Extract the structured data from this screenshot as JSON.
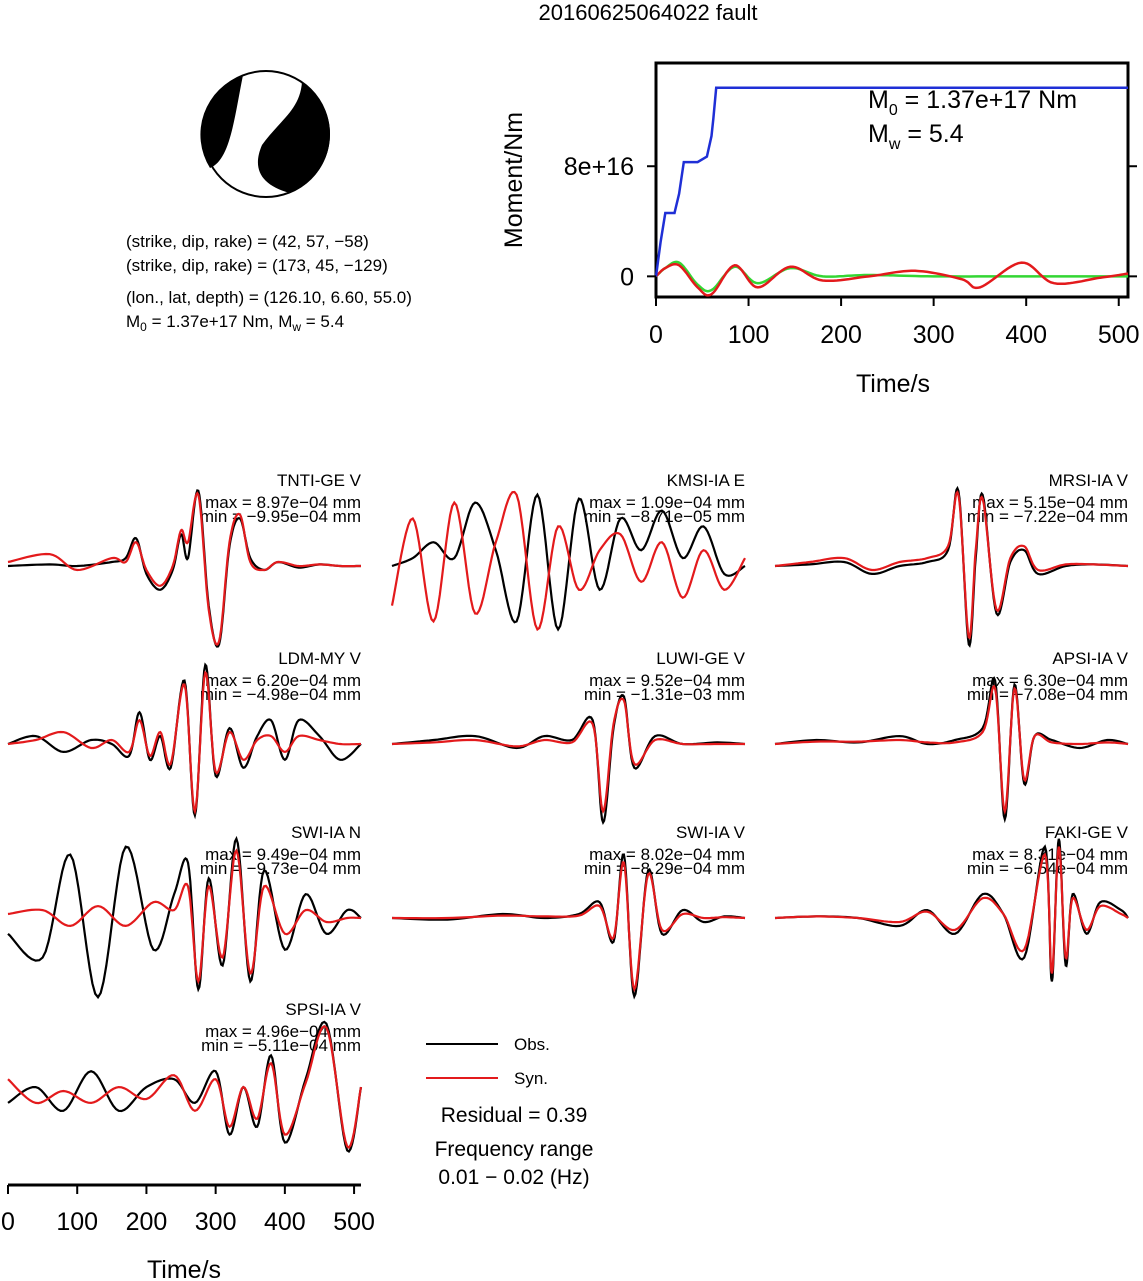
{
  "title": "20160625064022 fault",
  "mechanism": {
    "line1": "(strike, dip, rake) = (42, 57, −58)",
    "line2": "(strike, dip, rake) = (173, 45, −129)",
    "line3": "(lon., lat, depth) = (126.10, 6.60, 55.0)",
    "m0_prefix": "M",
    "m0_sub": "0",
    "m0_mid": " = 1.37e+17 Nm, M",
    "mw_sub": "w",
    "mw_value": " = 5.4"
  },
  "legend": {
    "obs": "Obs.",
    "syn": "Syn.",
    "residual": "Residual = 0.39",
    "freq_label": "Frequency range",
    "freq_value": "0.01 − 0.02 (Hz)"
  },
  "colors": {
    "obs": "#000000",
    "syn": "#e31a1c",
    "stf": "#1f2fd6",
    "stf_green": "#33d633",
    "beachball": "#000000"
  },
  "chart_data": [
    {
      "type": "line",
      "title": "",
      "xlabel": "Time/s",
      "ylabel": "Moment/Nm",
      "xlim": [
        0,
        510
      ],
      "ylim": [
        -1.5e+16,
        1.55e+17
      ],
      "xticks": [
        0,
        100,
        200,
        300,
        400,
        500
      ],
      "yticks": [
        0,
        8e+16
      ],
      "ytick_labels": [
        "0",
        "8e+16"
      ],
      "annotation_m0": "M0 = 1.37e+17 Nm",
      "annotation_mw": "Mw = 5.4",
      "series": [
        {
          "color": "blue",
          "x": [
            0,
            5,
            10,
            20,
            25,
            30,
            45,
            55,
            60,
            62,
            65,
            510
          ],
          "y": [
            0,
            2.5e+16,
            4.6e+16,
            4.6e+16,
            6e+16,
            8.3e+16,
            8.3e+16,
            8.7e+16,
            1.02e+17,
            1.15e+17,
            1.37e+17,
            1.37e+17
          ]
        },
        {
          "color": "red",
          "x": [
            0,
            10,
            25,
            45,
            60,
            85,
            110,
            145,
            180,
            230,
            280,
            330,
            350,
            395,
            430,
            480,
            510
          ],
          "y": [
            0,
            6000000000000000.0,
            8000000000000000.0,
            -8000000000000000.0,
            -1.3e+16,
            8000000000000000.0,
            -8000000000000000.0,
            7000000000000000.0,
            -3000000000000000.0,
            0,
            4000000000000000.0,
            -2000000000000000.0,
            -8000000000000000.0,
            1e+16,
            -5000000000000000.0,
            -1000000000000000.0,
            2000000000000000.0
          ]
        },
        {
          "color": "green",
          "x": [
            0,
            10,
            25,
            45,
            60,
            85,
            110,
            145,
            180,
            230,
            300,
            400,
            510
          ],
          "y": [
            0,
            6000000000000000.0,
            1e+16,
            -6000000000000000.0,
            -1e+16,
            7000000000000000.0,
            -5000000000000000.0,
            6000000000000000.0,
            0,
            1000000000000000.0,
            0,
            0,
            0
          ]
        }
      ]
    },
    {
      "type": "line",
      "title": "",
      "xlabel": "Time/s",
      "xlim": [
        0,
        510
      ],
      "xticks": [
        0,
        100,
        200,
        300,
        400,
        500
      ],
      "panels": [
        {
          "station": "TNTI-GE V",
          "max": "max = 8.97e−04 mm",
          "min": "min = −9.95e−04 mm"
        },
        {
          "station": "KMSI-IA E",
          "max": "max = 1.09e−04 mm",
          "min": "min = −8.71e−05 mm"
        },
        {
          "station": "MRSI-IA V",
          "max": "max = 5.15e−04 mm",
          "min": "min = −7.22e−04 mm"
        },
        {
          "station": "LDM-MY V",
          "max": "max = 6.20e−04 mm",
          "min": "min = −4.98e−04 mm"
        },
        {
          "station": "LUWI-GE V",
          "max": "max = 9.52e−04 mm",
          "min": "min = −1.31e−03 mm"
        },
        {
          "station": "APSI-IA V",
          "max": "max = 6.30e−04 mm",
          "min": "min = −7.08e−04 mm"
        },
        {
          "station": "SWI-IA N",
          "max": "max = 9.49e−04 mm",
          "min": "min = −9.73e−04 mm"
        },
        {
          "station": "SWI-IA V",
          "max": "max = 8.02e−04 mm",
          "min": "min = −8.29e−04 mm"
        },
        {
          "station": "FAKI-GE V",
          "max": "max = 8.31e−04 mm",
          "min": "min = −6.54e−04 mm"
        },
        {
          "station": "SPSI-IA V",
          "max": "max = 4.96e−04 mm",
          "min": "min = −5.11e−04 mm"
        }
      ],
      "obs_traces": [
        {
          "t": [
            0,
            60,
            100,
            150,
            170,
            185,
            200,
            220,
            238,
            250,
            260,
            275,
            290,
            305,
            320,
            335,
            350,
            370,
            390,
            420,
            450,
            480,
            510
          ],
          "a": [
            0,
            0.02,
            0,
            0.05,
            0.1,
            0.35,
            -0.1,
            -0.3,
            -0.05,
            0.4,
            0.1,
            0.95,
            -0.5,
            -0.99,
            0.25,
            0.6,
            0.1,
            -0.05,
            0.05,
            -0.02,
            0.02,
            0,
            0
          ]
        },
        {
          "t": [
            0,
            30,
            60,
            90,
            120,
            150,
            180,
            210,
            240,
            270,
            300,
            330,
            360,
            390,
            420,
            450,
            480,
            510
          ],
          "a": [
            0,
            0.1,
            0.3,
            0.1,
            0.8,
            0.2,
            -0.7,
            0.9,
            -0.8,
            0.85,
            -0.3,
            0.6,
            0.2,
            0.7,
            0.1,
            0.5,
            -0.1,
            0
          ]
        },
        {
          "t": [
            0,
            50,
            100,
            140,
            180,
            220,
            250,
            265,
            280,
            290,
            300,
            320,
            340,
            360,
            380,
            420,
            460,
            510
          ],
          "a": [
            0,
            0.02,
            0.05,
            -0.1,
            0,
            0.05,
            0.2,
            0.95,
            -0.99,
            0.1,
            0.9,
            -0.6,
            0.05,
            0.2,
            -0.1,
            0,
            0.02,
            0
          ]
        },
        {
          "t": [
            0,
            40,
            80,
            120,
            150,
            175,
            190,
            205,
            220,
            235,
            255,
            270,
            285,
            300,
            320,
            340,
            360,
            380,
            400,
            420,
            450,
            480,
            510
          ],
          "a": [
            0,
            0.1,
            -0.1,
            0.05,
            0,
            -0.15,
            0.4,
            -0.2,
            0.1,
            -0.3,
            0.8,
            -0.9,
            1.0,
            -0.4,
            0.2,
            -0.3,
            0.1,
            0.3,
            -0.2,
            0.3,
            0.1,
            -0.2,
            0
          ]
        },
        {
          "t": [
            0,
            60,
            120,
            180,
            220,
            260,
            290,
            305,
            320,
            335,
            350,
            380,
            420,
            470,
            510
          ],
          "a": [
            0,
            0.05,
            0.1,
            -0.05,
            0.1,
            0.05,
            0.3,
            -0.99,
            0.2,
            0.6,
            -0.3,
            0.1,
            0,
            0.02,
            0
          ]
        },
        {
          "t": [
            0,
            60,
            120,
            180,
            220,
            260,
            300,
            318,
            332,
            346,
            360,
            375,
            400,
            440,
            480,
            510
          ],
          "a": [
            0,
            0.05,
            0.02,
            0.1,
            0,
            0.05,
            0.2,
            0.8,
            -0.95,
            0.75,
            -0.5,
            0.1,
            0.05,
            -0.05,
            0.05,
            0
          ]
        },
        {
          "t": [
            0,
            50,
            90,
            130,
            170,
            210,
            240,
            260,
            275,
            290,
            310,
            330,
            350,
            370,
            400,
            430,
            460,
            490,
            510
          ],
          "a": [
            -0.2,
            -0.5,
            0.8,
            -1.0,
            0.9,
            -0.4,
            0.3,
            0.7,
            -0.9,
            0.5,
            -0.6,
            1.0,
            -0.8,
            0.6,
            -0.4,
            0.3,
            -0.2,
            0.1,
            0
          ]
        },
        {
          "t": [
            0,
            80,
            160,
            220,
            270,
            300,
            320,
            335,
            350,
            370,
            390,
            420,
            450,
            480,
            510
          ],
          "a": [
            0,
            -0.02,
            0.05,
            0,
            0.05,
            0.2,
            -0.3,
            0.8,
            -0.99,
            0.6,
            -0.2,
            0.1,
            -0.05,
            0.02,
            0
          ]
        },
        {
          "t": [
            0,
            60,
            120,
            180,
            220,
            260,
            300,
            330,
            360,
            390,
            400,
            410,
            420,
            430,
            450,
            470,
            500,
            510
          ],
          "a": [
            0,
            0.02,
            0,
            -0.1,
            0.1,
            -0.2,
            0.3,
            0.05,
            -0.5,
            0.9,
            -0.8,
            1.0,
            -0.6,
            0.3,
            -0.2,
            0.2,
            0.1,
            0
          ]
        },
        {
          "t": [
            0,
            40,
            80,
            120,
            160,
            200,
            240,
            270,
            300,
            320,
            340,
            360,
            380,
            400,
            430,
            460,
            490,
            510
          ],
          "a": [
            -0.1,
            0.1,
            -0.2,
            0.3,
            -0.2,
            0.1,
            0.2,
            -0.1,
            0.3,
            -0.5,
            0.1,
            -0.4,
            0.5,
            -0.6,
            0.2,
            0.9,
            -0.7,
            0.1
          ]
        }
      ],
      "syn_traces": [
        {
          "t": [
            0,
            60,
            100,
            150,
            170,
            185,
            200,
            220,
            238,
            250,
            260,
            275,
            290,
            305,
            320,
            335,
            350,
            370,
            390,
            420,
            450,
            480,
            510
          ],
          "a": [
            0.05,
            0.15,
            -0.05,
            0.1,
            0.05,
            0.3,
            -0.05,
            -0.25,
            0,
            0.45,
            0.3,
            0.9,
            -0.55,
            -0.95,
            0.3,
            0.65,
            0.05,
            -0.05,
            0.05,
            0,
            0.02,
            0,
            0
          ]
        },
        {
          "t": [
            0,
            30,
            60,
            90,
            120,
            150,
            180,
            210,
            240,
            270,
            300,
            330,
            360,
            390,
            420,
            450,
            480,
            510
          ],
          "a": [
            -0.5,
            0.6,
            -0.7,
            0.8,
            -0.6,
            0.3,
            0.9,
            -0.8,
            0.5,
            -0.3,
            0.2,
            0.4,
            -0.2,
            0.3,
            -0.4,
            0.2,
            -0.3,
            0.1
          ]
        },
        {
          "t": [
            0,
            50,
            100,
            140,
            180,
            220,
            250,
            265,
            280,
            290,
            300,
            320,
            340,
            360,
            380,
            420,
            460,
            510
          ],
          "a": [
            0,
            0.05,
            0.1,
            -0.05,
            0.05,
            0.1,
            0.25,
            0.9,
            -0.9,
            0.2,
            0.85,
            -0.55,
            0.1,
            0.25,
            -0.05,
            0.02,
            0.02,
            0
          ]
        },
        {
          "t": [
            0,
            40,
            80,
            120,
            150,
            175,
            190,
            205,
            220,
            235,
            255,
            270,
            285,
            300,
            320,
            340,
            360,
            380,
            400,
            420,
            450,
            480,
            510
          ],
          "a": [
            0,
            0.05,
            0.15,
            -0.05,
            0.05,
            -0.1,
            0.3,
            -0.15,
            0.15,
            -0.25,
            0.75,
            -0.85,
            0.9,
            -0.35,
            0.15,
            -0.2,
            0.05,
            0.1,
            -0.1,
            0.1,
            0.05,
            0,
            0
          ]
        },
        {
          "t": [
            0,
            60,
            120,
            180,
            220,
            260,
            290,
            305,
            320,
            335,
            350,
            380,
            420,
            470,
            510
          ],
          "a": [
            0,
            0.02,
            0.05,
            -0.03,
            0.05,
            0.02,
            0.25,
            -0.85,
            0.25,
            0.55,
            -0.25,
            0.05,
            0,
            0,
            0
          ]
        },
        {
          "t": [
            0,
            60,
            120,
            180,
            220,
            260,
            300,
            318,
            332,
            346,
            360,
            375,
            400,
            440,
            480,
            510
          ],
          "a": [
            0,
            0.03,
            0.03,
            0.05,
            0.02,
            0.02,
            0.15,
            0.7,
            -0.85,
            0.7,
            -0.45,
            0.1,
            0.02,
            0,
            0.02,
            0
          ]
        },
        {
          "t": [
            0,
            50,
            90,
            130,
            170,
            210,
            240,
            260,
            275,
            290,
            310,
            330,
            350,
            370,
            400,
            430,
            460,
            490,
            510
          ],
          "a": [
            0.05,
            0.1,
            -0.1,
            0.15,
            -0.1,
            0.2,
            0.1,
            0.4,
            -0.8,
            0.4,
            -0.5,
            0.85,
            -0.7,
            0.4,
            -0.2,
            0.1,
            -0.05,
            0,
            0
          ]
        },
        {
          "t": [
            0,
            80,
            160,
            220,
            270,
            300,
            320,
            335,
            350,
            370,
            390,
            420,
            450,
            480,
            510
          ],
          "a": [
            0,
            0,
            0.03,
            0.02,
            0.03,
            0.15,
            -0.25,
            0.7,
            -0.9,
            0.55,
            -0.15,
            0.05,
            0,
            0.01,
            0
          ]
        },
        {
          "t": [
            0,
            60,
            120,
            180,
            220,
            260,
            300,
            330,
            360,
            390,
            400,
            410,
            420,
            430,
            450,
            470,
            500,
            510
          ],
          "a": [
            0,
            0.02,
            0,
            -0.05,
            0.08,
            -0.15,
            0.25,
            0.05,
            -0.4,
            0.8,
            -0.7,
            0.9,
            -0.5,
            0.25,
            -0.15,
            0.15,
            0.05,
            0
          ]
        },
        {
          "t": [
            0,
            40,
            80,
            120,
            160,
            200,
            240,
            270,
            300,
            320,
            340,
            360,
            380,
            400,
            430,
            460,
            490,
            510
          ],
          "a": [
            0.2,
            -0.1,
            0.05,
            -0.1,
            0.1,
            -0.05,
            0.25,
            -0.2,
            0.2,
            -0.4,
            0.1,
            -0.3,
            0.4,
            -0.5,
            0.15,
            0.85,
            -0.65,
            0.1
          ]
        }
      ]
    }
  ]
}
